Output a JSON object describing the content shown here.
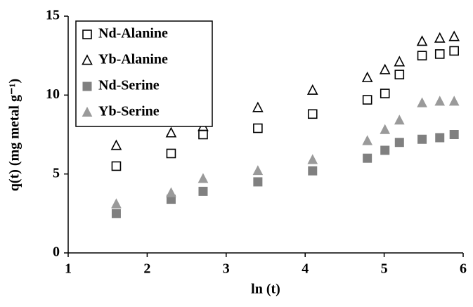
{
  "chart_data": {
    "type": "scatter",
    "x_label": "ln (t)",
    "y_label": "q(t) (mg metal g⁻¹)",
    "x": [
      1.609,
      2.303,
      2.708,
      3.401,
      4.094,
      4.787,
      5.01,
      5.193,
      5.48,
      5.704,
      5.886
    ],
    "series": [
      {
        "name": "Nd-Alanine",
        "color": "#000000",
        "marker": "square",
        "filled": false,
        "values": [
          5.5,
          6.3,
          7.5,
          7.9,
          8.8,
          9.7,
          10.1,
          11.3,
          12.5,
          12.6,
          12.8
        ]
      },
      {
        "name": "Yb-Alanine",
        "color": "#000000",
        "marker": "triangle",
        "filled": false,
        "values": [
          6.8,
          7.6,
          8.0,
          9.2,
          10.3,
          11.1,
          11.6,
          12.1,
          13.4,
          13.6,
          13.7
        ]
      },
      {
        "name": "Nd-Serine",
        "color": "#808080",
        "marker": "square",
        "filled": true,
        "values": [
          2.5,
          3.4,
          3.9,
          4.5,
          5.2,
          6.0,
          6.5,
          7.0,
          7.2,
          7.3,
          7.5
        ]
      },
      {
        "name": "Yb-Serine",
        "color": "#9a9a9a",
        "marker": "triangle",
        "filled": true,
        "values": [
          3.1,
          3.8,
          4.7,
          5.2,
          5.9,
          7.1,
          7.8,
          8.4,
          9.5,
          9.6,
          9.6
        ]
      }
    ],
    "xlim": [
      1,
      6
    ],
    "xticks": [
      1,
      2,
      3,
      4,
      5,
      6
    ],
    "ylim": [
      0,
      15
    ],
    "yticks": [
      0,
      5,
      10,
      15
    ],
    "grid": false,
    "legend": "top-left"
  }
}
